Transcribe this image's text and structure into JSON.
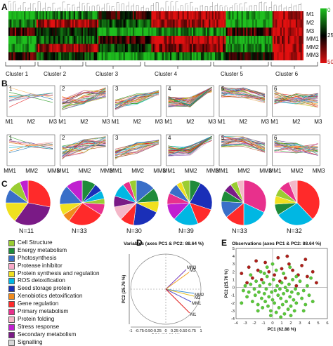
{
  "panels": {
    "A": "A",
    "B": "B",
    "C": "C",
    "D": "D",
    "E": "E"
  },
  "heatmap": {
    "rows": [
      "M1",
      "M2",
      "M3",
      "MM1",
      "MM2",
      "MM3"
    ],
    "clusters": [
      "Cluster 1",
      "Cluster 2",
      "Cluster 3",
      "Cluster 4",
      "Cluster 5",
      "Cluster 6"
    ],
    "colorbar_ticks": [
      "0",
      "25",
      "50"
    ],
    "colors": {
      "low": "#1fbf1f",
      "mid": "#000000",
      "high": "#e11010"
    }
  },
  "profiles": {
    "top_numbers": [
      "1",
      "2",
      "3",
      "4",
      "5",
      "6"
    ],
    "bottom_numbers": [
      "1",
      "2",
      "3",
      "4",
      "5",
      "6"
    ],
    "top_xticks": [
      "M1",
      "M2",
      "M3"
    ],
    "bottom_xticks": [
      "MM1",
      "MM2",
      "MM3"
    ]
  },
  "pies": {
    "n_labels": [
      "N=11",
      "N=33",
      "N=30",
      "N=39",
      "N=33",
      "N=32"
    ]
  },
  "legend": {
    "items": [
      {
        "label": "Cell Structure",
        "color": "#9acd32"
      },
      {
        "label": "Energy metabolism",
        "color": "#1f8b3a"
      },
      {
        "label": "Photosynthesis",
        "color": "#3a6fc8"
      },
      {
        "label": "Protease inhibitor",
        "color": "#f7a8c8"
      },
      {
        "label": "Protein synthesis and regulation",
        "color": "#f0e020"
      },
      {
        "label": "ROS detoxification",
        "color": "#00b7e3"
      },
      {
        "label": "Seed storage protein",
        "color": "#1a2fb8"
      },
      {
        "label": "Xenobiotics detoxification",
        "color": "#f08a1c"
      },
      {
        "label": "Gene regulation",
        "color": "#ff2a2a"
      },
      {
        "label": "Primary metabolism",
        "color": "#e8308c"
      },
      {
        "label": "Protein folding",
        "color": "#f4b7c8"
      },
      {
        "label": "Stress response",
        "color": "#c020d0"
      },
      {
        "label": "Secondary metabolism",
        "color": "#7a1a86"
      },
      {
        "label": "Signalling",
        "color": "#d8d8d8"
      }
    ]
  },
  "chart_data": [
    {
      "type": "scatter",
      "title": "Variables (axes PC1 & PC2: 88.64 %)",
      "xlabel": "PC1 (62.88 %)",
      "ylabel": "PC2 (25.76 %)",
      "xlim": [
        -1,
        1
      ],
      "ylim": [
        -1,
        1
      ],
      "xticks": [
        "-1",
        "-0.75",
        "-0.50",
        "-0.25",
        "0",
        "0.25",
        "0.50",
        "0.75",
        "1"
      ],
      "yticks": [
        "-1",
        "-0.75",
        "-0.50",
        "-0.25",
        "0",
        "0.25",
        "0.50",
        "0.75",
        "1"
      ],
      "vectors": [
        {
          "name": "MM3",
          "x": 0.58,
          "y": 0.56,
          "color": "#7a3fc0"
        },
        {
          "name": "M3",
          "x": 0.66,
          "y": 0.48,
          "color": "#f0a020"
        },
        {
          "name": "MM2",
          "x": 0.8,
          "y": -0.12,
          "color": "#3a8fd8"
        },
        {
          "name": "M2",
          "x": 0.8,
          "y": -0.2,
          "color": "#e8c020"
        },
        {
          "name": "MM1",
          "x": 0.72,
          "y": -0.36,
          "color": "#4a4ac8"
        },
        {
          "name": "M1",
          "x": 0.68,
          "y": -0.68,
          "color": "#e02020"
        }
      ]
    },
    {
      "type": "scatter",
      "title": "Observations (axes PC1 & PC2: 88.64 %)",
      "xlabel": "PC1 (62.88 %)",
      "ylabel": "PC2 (25.76 %)",
      "xlim": [
        -4,
        6
      ],
      "ylim": [
        -4,
        5
      ],
      "xticks": [
        "-4",
        "-3",
        "-2",
        "-1",
        "0",
        "1",
        "2",
        "3",
        "4",
        "5",
        "6"
      ],
      "yticks": [
        "-4",
        "-3",
        "-2",
        "-1",
        "0",
        "1",
        "2",
        "3",
        "4",
        "5"
      ],
      "series": [
        {
          "name": "",
          "color": "#b01c1c",
          "points": [
            [
              -3.4,
              1.8
            ],
            [
              -2.6,
              2.6
            ],
            [
              -2.2,
              1.2
            ],
            [
              -1.6,
              2.2
            ],
            [
              -1.2,
              1.0
            ],
            [
              -0.8,
              3.2
            ],
            [
              -0.4,
              2.0
            ],
            [
              0.2,
              1.6
            ],
            [
              0.6,
              3.8
            ],
            [
              1.0,
              2.4
            ],
            [
              1.4,
              1.2
            ],
            [
              1.8,
              3.0
            ],
            [
              2.2,
              2.2
            ],
            [
              2.8,
              1.6
            ],
            [
              3.2,
              2.8
            ],
            [
              3.8,
              1.4
            ],
            [
              4.4,
              2.0
            ],
            [
              4.8,
              0.6
            ],
            [
              2.6,
              0.2
            ],
            [
              0.8,
              0.8
            ],
            [
              -2.8,
              0.6
            ],
            [
              -1.8,
              3.4
            ],
            [
              3.6,
              3.6
            ],
            [
              1.6,
              4.0
            ]
          ]
        },
        {
          "name": "",
          "color": "#5ac83a",
          "points": [
            [
              -3.2,
              -0.4
            ],
            [
              -3.0,
              0.2
            ],
            [
              -2.8,
              -1.2
            ],
            [
              -2.6,
              -0.6
            ],
            [
              -2.4,
              0.4
            ],
            [
              -2.2,
              -1.8
            ],
            [
              -2.0,
              -0.2
            ],
            [
              -1.9,
              -1.0
            ],
            [
              -1.8,
              0.8
            ],
            [
              -1.6,
              -2.2
            ],
            [
              -1.5,
              -0.6
            ],
            [
              -1.4,
              0.2
            ],
            [
              -1.2,
              -1.4
            ],
            [
              -1.1,
              -2.6
            ],
            [
              -1.0,
              0.6
            ],
            [
              -0.9,
              -0.8
            ],
            [
              -0.8,
              -1.8
            ],
            [
              -0.7,
              -0.2
            ],
            [
              -0.6,
              1.4
            ],
            [
              -0.5,
              -2.4
            ],
            [
              -0.4,
              -1.2
            ],
            [
              -0.3,
              0.4
            ],
            [
              -0.2,
              -3.0
            ],
            [
              -0.1,
              -0.6
            ],
            [
              0.0,
              -1.6
            ],
            [
              0.1,
              1.0
            ],
            [
              0.2,
              -2.0
            ],
            [
              0.3,
              -0.4
            ],
            [
              0.4,
              -3.2
            ],
            [
              0.5,
              0.2
            ],
            [
              0.6,
              -1.0
            ],
            [
              0.7,
              -2.6
            ],
            [
              0.8,
              -0.2
            ],
            [
              0.9,
              -1.4
            ],
            [
              1.0,
              0.6
            ],
            [
              1.1,
              -2.2
            ],
            [
              1.2,
              -0.8
            ],
            [
              1.3,
              -3.4
            ],
            [
              1.4,
              0.0
            ],
            [
              1.5,
              -1.8
            ],
            [
              1.6,
              -0.4
            ],
            [
              1.7,
              -2.8
            ],
            [
              1.8,
              0.4
            ],
            [
              1.9,
              -1.2
            ],
            [
              2.0,
              -2.4
            ],
            [
              2.1,
              -0.6
            ],
            [
              2.2,
              1.0
            ],
            [
              2.3,
              -1.6
            ],
            [
              2.4,
              -3.0
            ],
            [
              2.5,
              -0.2
            ],
            [
              2.6,
              -2.0
            ],
            [
              2.8,
              -0.8
            ],
            [
              3.0,
              0.8
            ],
            [
              3.2,
              -1.4
            ],
            [
              3.4,
              -0.4
            ],
            [
              3.6,
              -2.2
            ],
            [
              3.8,
              0.2
            ],
            [
              4.0,
              -1.0
            ],
            [
              4.2,
              1.2
            ],
            [
              -1.3,
              2.0
            ],
            [
              -0.6,
              2.6
            ],
            [
              0.4,
              2.2
            ],
            [
              1.2,
              1.8
            ],
            [
              -2.4,
              1.6
            ],
            [
              2.6,
              1.4
            ],
            [
              -0.2,
              -3.6
            ],
            [
              0.9,
              -3.8
            ],
            [
              -1.6,
              -3.0
            ],
            [
              3.4,
              -3.0
            ],
            [
              2.0,
              -3.6
            ],
            [
              -3.4,
              -2.0
            ],
            [
              4.4,
              -1.8
            ],
            [
              -0.9,
              1.8
            ],
            [
              1.9,
              2.6
            ],
            [
              0.0,
              3.0
            ]
          ]
        }
      ]
    }
  ]
}
